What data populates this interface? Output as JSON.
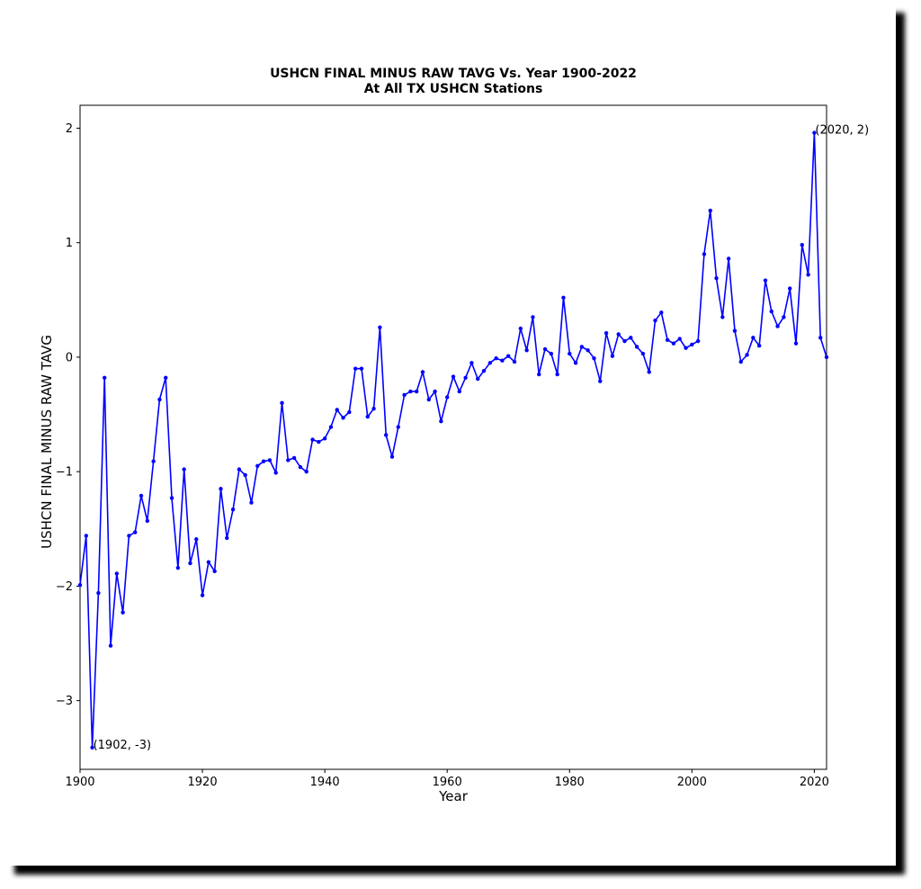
{
  "chart_data": {
    "type": "line",
    "title": "USHCN FINAL MINUS RAW TAVG Vs. Year 1900-2022",
    "subtitle": "At All TX USHCN Stations",
    "xlabel": "Year",
    "ylabel": "USHCN FINAL MINUS RAW TAVG",
    "xlim": [
      1900,
      2022
    ],
    "ylim": [
      -3.6,
      2.2
    ],
    "xticks": [
      1900,
      1920,
      1940,
      1960,
      1980,
      2000,
      2020
    ],
    "xtick_labels": [
      "1900",
      "1920",
      "1940",
      "1960",
      "1980",
      "2000",
      "2020"
    ],
    "yticks": [
      2,
      1,
      0,
      -1,
      -2,
      -3
    ],
    "ytick_labels": [
      "2",
      "1",
      "0",
      "−1",
      "−2",
      "−3"
    ],
    "grid": false,
    "series_color": "#0000ff",
    "x": [
      1900,
      1901,
      1902,
      1903,
      1904,
      1905,
      1906,
      1907,
      1908,
      1909,
      1910,
      1911,
      1912,
      1913,
      1914,
      1915,
      1916,
      1917,
      1918,
      1919,
      1920,
      1921,
      1922,
      1923,
      1924,
      1925,
      1926,
      1927,
      1928,
      1929,
      1930,
      1931,
      1932,
      1933,
      1934,
      1935,
      1936,
      1937,
      1938,
      1939,
      1940,
      1941,
      1942,
      1943,
      1944,
      1945,
      1946,
      1947,
      1948,
      1949,
      1950,
      1951,
      1952,
      1953,
      1954,
      1955,
      1956,
      1957,
      1958,
      1959,
      1960,
      1961,
      1962,
      1963,
      1964,
      1965,
      1966,
      1967,
      1968,
      1969,
      1970,
      1971,
      1972,
      1973,
      1974,
      1975,
      1976,
      1977,
      1978,
      1979,
      1980,
      1981,
      1982,
      1983,
      1984,
      1985,
      1986,
      1987,
      1988,
      1989,
      1990,
      1991,
      1992,
      1993,
      1994,
      1995,
      1996,
      1997,
      1998,
      1999,
      2000,
      2001,
      2002,
      2003,
      2004,
      2005,
      2006,
      2007,
      2008,
      2009,
      2010,
      2011,
      2012,
      2013,
      2014,
      2015,
      2016,
      2017,
      2018,
      2019,
      2020,
      2021,
      2022
    ],
    "y": [
      -1.99,
      -1.56,
      -3.41,
      -2.06,
      -0.18,
      -2.52,
      -1.89,
      -2.23,
      -1.56,
      -1.53,
      -1.21,
      -1.43,
      -0.91,
      -0.37,
      -0.18,
      -1.23,
      -1.84,
      -0.98,
      -1.8,
      -1.59,
      -2.08,
      -1.79,
      -1.87,
      -1.15,
      -1.58,
      -1.33,
      -0.98,
      -1.03,
      -1.27,
      -0.95,
      -0.91,
      -0.9,
      -1.01,
      -0.4,
      -0.9,
      -0.88,
      -0.96,
      -1.0,
      -0.72,
      -0.74,
      -0.71,
      -0.61,
      -0.46,
      -0.53,
      -0.48,
      -0.1,
      -0.1,
      -0.52,
      -0.45,
      0.26,
      -0.68,
      -0.87,
      -0.61,
      -0.33,
      -0.3,
      -0.3,
      -0.13,
      -0.37,
      -0.3,
      -0.56,
      -0.35,
      -0.17,
      -0.3,
      -0.18,
      -0.05,
      -0.19,
      -0.12,
      -0.05,
      -0.01,
      -0.03,
      0.01,
      -0.04,
      0.25,
      0.06,
      0.35,
      -0.15,
      0.07,
      0.03,
      -0.15,
      0.52,
      0.03,
      -0.05,
      0.09,
      0.06,
      -0.01,
      -0.21,
      0.21,
      0.01,
      0.2,
      0.14,
      0.17,
      0.09,
      0.03,
      -0.13,
      0.32,
      0.39,
      0.15,
      0.12,
      0.16,
      0.08,
      0.11,
      0.14,
      0.9,
      1.28,
      0.69,
      0.35,
      0.86,
      0.23,
      -0.04,
      0.02,
      0.17,
      0.1,
      0.67,
      0.4,
      0.27,
      0.35,
      0.6,
      0.12,
      0.98,
      0.72,
      1.96,
      0.17,
      0.0
    ],
    "annotations": [
      {
        "text": "(1902, -3)",
        "x": 1902,
        "y": -3.41
      },
      {
        "text": "(2020, 2)",
        "x": 2020,
        "y": 1.96
      }
    ]
  }
}
